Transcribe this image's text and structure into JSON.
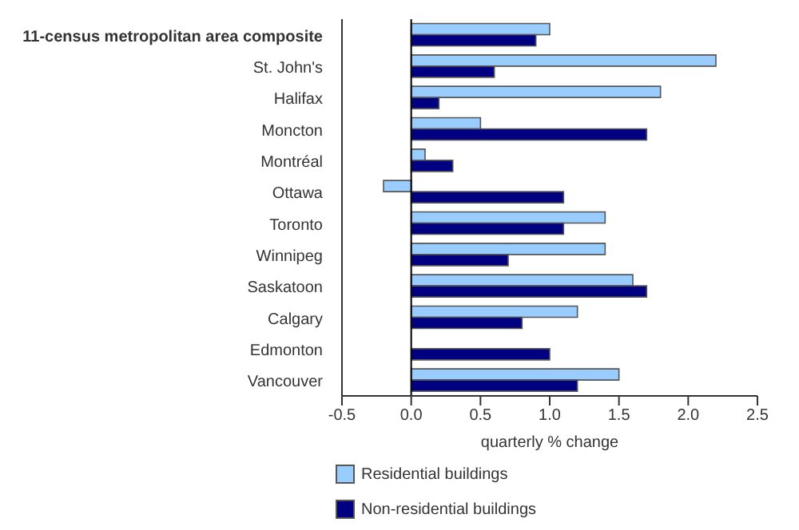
{
  "chart_data": {
    "type": "bar",
    "orientation": "horizontal",
    "xlabel": "quarterly % change",
    "categories": [
      "11-census metropolitan area composite",
      "St. John's",
      "Halifax",
      "Moncton",
      "Montréal",
      "Ottawa",
      "Toronto",
      "Winnipeg",
      "Saskatoon",
      "Calgary",
      "Edmonton",
      "Vancouver"
    ],
    "series": [
      {
        "name": "Residential buildings",
        "color": "#99ccff",
        "values": [
          1.0,
          2.2,
          1.8,
          0.5,
          0.1,
          -0.2,
          1.4,
          1.4,
          1.6,
          1.2,
          0.0,
          1.5
        ]
      },
      {
        "name": "Non-residential buildings",
        "color": "#000080",
        "values": [
          0.9,
          0.6,
          0.2,
          1.7,
          0.3,
          1.1,
          1.1,
          0.7,
          1.7,
          0.8,
          1.0,
          1.2
        ]
      }
    ],
    "xlim": [
      -0.5,
      2.5
    ],
    "xticks": [
      {
        "value": -0.5,
        "label": "-0.5"
      },
      {
        "value": 0,
        "label": "0.0"
      },
      {
        "value": 0.5,
        "label": "0.5"
      },
      {
        "value": 1,
        "label": "1.0"
      },
      {
        "value": 1.5,
        "label": "1.5"
      },
      {
        "value": 2,
        "label": "2.0"
      },
      {
        "value": 2.5,
        "label": "2.5"
      }
    ],
    "ref_lines": [
      {
        "axis": "x",
        "value": 0,
        "color": "#000000"
      }
    ],
    "grid": false,
    "legend": "bottom left"
  }
}
